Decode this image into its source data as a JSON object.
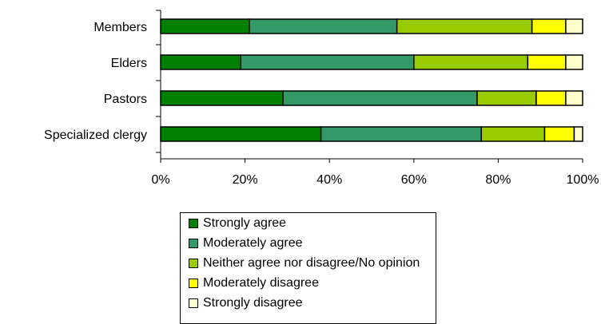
{
  "chart_data": {
    "type": "bar",
    "orientation": "horizontal",
    "stacked": true,
    "categories": [
      "Members",
      "Elders",
      "Pastors",
      "Specialized clergy"
    ],
    "series": [
      {
        "name": "Strongly agree",
        "color": "#008000",
        "values": [
          21,
          19,
          29,
          38
        ]
      },
      {
        "name": "Moderately agree",
        "color": "#339966",
        "values": [
          35,
          41,
          46,
          38
        ]
      },
      {
        "name": "Neither agree nor disagree/No opinion",
        "color": "#99cc00",
        "values": [
          32,
          27,
          14,
          15
        ]
      },
      {
        "name": "Moderately disagree",
        "color": "#ffff00",
        "values": [
          8,
          9,
          7,
          7
        ]
      },
      {
        "name": "Strongly disagree",
        "color": "#ffffcc",
        "values": [
          4,
          4,
          4,
          2
        ]
      }
    ],
    "x_ticks": [
      "0%",
      "20%",
      "40%",
      "60%",
      "80%",
      "100%"
    ],
    "xlim": [
      0,
      100
    ],
    "grid": false,
    "legend_position": "bottom"
  }
}
